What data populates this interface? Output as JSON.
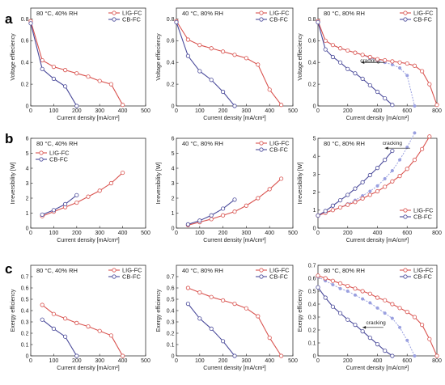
{
  "colors": {
    "lig": "#d9534f",
    "cb": "#4a4a9a",
    "frame": "#333333",
    "cracking": "#9aa0e0"
  },
  "chart_data": [
    {
      "type": "line",
      "row": "a",
      "condition": "80 °C, 40% RH",
      "xlabel": "Current density [mA/cm²]",
      "ylabel": "Voltage effieciency",
      "xlim": [
        0,
        500
      ],
      "ylim": [
        0,
        0.9
      ],
      "xticks": [
        0,
        100,
        200,
        300,
        400,
        500
      ],
      "yticks": [
        0.0,
        0.2,
        0.4,
        0.6,
        0.8
      ],
      "legend_position": "top-right",
      "cracking": null,
      "series": [
        {
          "name": "LIG-FC",
          "color": "lig",
          "x": [
            0,
            50,
            100,
            150,
            200,
            250,
            300,
            350,
            400
          ],
          "y": [
            0.78,
            0.42,
            0.36,
            0.33,
            0.3,
            0.27,
            0.23,
            0.2,
            0.01
          ]
        },
        {
          "name": "CB-FC",
          "color": "cb",
          "x": [
            0,
            50,
            100,
            150,
            200
          ],
          "y": [
            0.76,
            0.34,
            0.25,
            0.18,
            0.0
          ]
        }
      ]
    },
    {
      "type": "line",
      "row": "a",
      "condition": "40 °C, 80% RH",
      "xlabel": "Current density [mA/cm²]",
      "ylabel": "Voltage effieciency",
      "xlim": [
        0,
        500
      ],
      "ylim": [
        0,
        0.9
      ],
      "xticks": [
        0,
        100,
        200,
        300,
        400,
        500
      ],
      "yticks": [
        0.0,
        0.2,
        0.4,
        0.6,
        0.8
      ],
      "legend_position": "top-right",
      "cracking": null,
      "series": [
        {
          "name": "LIG-FC",
          "color": "lig",
          "x": [
            0,
            50,
            100,
            150,
            200,
            250,
            300,
            350,
            400,
            450
          ],
          "y": [
            0.78,
            0.61,
            0.56,
            0.53,
            0.5,
            0.47,
            0.44,
            0.38,
            0.15,
            0.01
          ]
        },
        {
          "name": "CB-FC",
          "color": "cb",
          "x": [
            0,
            50,
            100,
            150,
            200,
            250
          ],
          "y": [
            0.77,
            0.46,
            0.32,
            0.24,
            0.13,
            0.0
          ]
        }
      ]
    },
    {
      "type": "line",
      "row": "a",
      "condition": "80 °C, 80% RH",
      "xlabel": "Current density [mA/cm²]",
      "ylabel": "Voltage effieciency",
      "xlim": [
        0,
        800
      ],
      "ylim": [
        0,
        0.9
      ],
      "xticks": [
        0,
        200,
        400,
        600,
        800
      ],
      "yticks": [
        0.0,
        0.2,
        0.4,
        0.6,
        0.8
      ],
      "legend_position": "top-right",
      "cracking": {
        "label": "cracking",
        "label_x": 350,
        "label_y": 0.4,
        "arrow": [
          [
            450,
            0.4
          ],
          [
            290,
            0.4
          ]
        ],
        "series": {
          "x": [
            0,
            50,
            100,
            150,
            200,
            250,
            300,
            350,
            400,
            450,
            500,
            550,
            600,
            650
          ],
          "y": [
            0.78,
            0.6,
            0.56,
            0.53,
            0.51,
            0.49,
            0.47,
            0.44,
            0.42,
            0.4,
            0.38,
            0.35,
            0.28,
            0.0
          ]
        }
      },
      "series": [
        {
          "name": "LIG-FC",
          "color": "lig",
          "x": [
            0,
            50,
            100,
            150,
            200,
            250,
            300,
            350,
            400,
            450,
            500,
            550,
            600,
            650,
            700,
            750,
            800
          ],
          "y": [
            0.78,
            0.6,
            0.56,
            0.53,
            0.51,
            0.49,
            0.47,
            0.45,
            0.43,
            0.42,
            0.41,
            0.4,
            0.39,
            0.37,
            0.32,
            0.2,
            0.01
          ]
        },
        {
          "name": "CB-FC",
          "color": "cb",
          "x": [
            0,
            50,
            100,
            150,
            200,
            250,
            300,
            350,
            400,
            450,
            500
          ],
          "y": [
            0.77,
            0.52,
            0.45,
            0.4,
            0.34,
            0.3,
            0.25,
            0.19,
            0.13,
            0.07,
            0.01
          ]
        }
      ]
    },
    {
      "type": "line",
      "row": "b",
      "condition": "80 °C, 40% RH",
      "xlabel": "Current density [mA/cm²]",
      "ylabel": "Irreversibility [W]",
      "xlim": [
        0,
        500
      ],
      "ylim": [
        0,
        6
      ],
      "xticks": [
        0,
        100,
        200,
        300,
        400,
        500
      ],
      "yticks": [
        0,
        1,
        2,
        3,
        4,
        5,
        6
      ],
      "legend_position": "top-left",
      "cracking": null,
      "series": [
        {
          "name": "LIG-FC",
          "color": "lig",
          "x": [
            50,
            100,
            150,
            200,
            250,
            300,
            350,
            400
          ],
          "y": [
            0.8,
            1.1,
            1.4,
            1.7,
            2.1,
            2.5,
            3.0,
            3.7
          ]
        },
        {
          "name": "CB-FC",
          "color": "cb",
          "x": [
            50,
            100,
            150,
            200
          ],
          "y": [
            0.9,
            1.2,
            1.6,
            2.2
          ]
        }
      ]
    },
    {
      "type": "line",
      "row": "b",
      "condition": "40 °C, 80% RH",
      "xlabel": "Current density [mA/cm²]",
      "ylabel": "Irreversibility [W]",
      "xlim": [
        0,
        500
      ],
      "ylim": [
        0,
        6
      ],
      "xticks": [
        0,
        100,
        200,
        300,
        400,
        500
      ],
      "yticks": [
        0,
        1,
        2,
        3,
        4,
        5,
        6
      ],
      "legend_position": "top-right",
      "cracking": null,
      "series": [
        {
          "name": "LIG-FC",
          "color": "lig",
          "x": [
            50,
            100,
            150,
            200,
            250,
            300,
            350,
            400,
            450
          ],
          "y": [
            0.2,
            0.4,
            0.6,
            0.85,
            1.1,
            1.5,
            2.0,
            2.6,
            3.3
          ]
        },
        {
          "name": "CB-FC",
          "color": "cb",
          "x": [
            50,
            100,
            150,
            200,
            250
          ],
          "y": [
            0.25,
            0.5,
            0.85,
            1.3,
            1.9
          ]
        }
      ]
    },
    {
      "type": "line",
      "row": "b",
      "condition": "80 °C, 80% RH",
      "xlabel": "Current density [mA/cm²]",
      "ylabel": "Irreversibility [W]",
      "xlim": [
        0,
        800
      ],
      "ylim": [
        0,
        5
      ],
      "xticks": [
        0,
        200,
        400,
        600,
        800
      ],
      "yticks": [
        0,
        1,
        2,
        3,
        4,
        5
      ],
      "legend_position": "bottom-right",
      "cracking": {
        "label": "cracking",
        "label_x": 500,
        "label_y": 4.65,
        "arrow": [
          [
            620,
            4.45
          ],
          [
            450,
            4.45
          ]
        ],
        "series": {
          "x": [
            0,
            50,
            100,
            150,
            200,
            250,
            300,
            350,
            400,
            450,
            500,
            550,
            600,
            650
          ],
          "y": [
            0.7,
            0.85,
            1.0,
            1.15,
            1.35,
            1.55,
            1.8,
            2.05,
            2.35,
            2.75,
            3.2,
            3.8,
            4.5,
            5.3
          ]
        }
      },
      "series": [
        {
          "name": "LIG-FC",
          "color": "lig",
          "x": [
            0,
            50,
            100,
            150,
            200,
            250,
            300,
            350,
            400,
            450,
            500,
            550,
            600,
            650,
            700,
            750
          ],
          "y": [
            0.7,
            0.85,
            1.0,
            1.15,
            1.3,
            1.45,
            1.65,
            1.85,
            2.05,
            2.3,
            2.6,
            2.9,
            3.3,
            3.8,
            4.4,
            5.1
          ]
        },
        {
          "name": "CB-FC",
          "color": "cb",
          "x": [
            0,
            50,
            100,
            150,
            200,
            250,
            300,
            350,
            400,
            450,
            500
          ],
          "y": [
            0.7,
            0.95,
            1.25,
            1.55,
            1.85,
            2.2,
            2.55,
            2.95,
            3.35,
            3.8,
            4.3
          ]
        }
      ]
    },
    {
      "type": "line",
      "row": "c",
      "condition": "80 °C, 40% RH",
      "xlabel": "Current density [mA/cm²]",
      "ylabel": "Exergy efficiency",
      "xlim": [
        0,
        500
      ],
      "ylim": [
        0,
        0.8
      ],
      "xticks": [
        0,
        100,
        200,
        300,
        400,
        500
      ],
      "yticks": [
        0.0,
        0.1,
        0.2,
        0.3,
        0.4,
        0.5,
        0.6,
        0.7
      ],
      "legend_position": "top-right",
      "cracking": null,
      "series": [
        {
          "name": "LIG-FC",
          "color": "lig",
          "x": [
            50,
            100,
            150,
            200,
            250,
            300,
            350,
            400
          ],
          "y": [
            0.45,
            0.37,
            0.33,
            0.29,
            0.26,
            0.22,
            0.18,
            0.0
          ]
        },
        {
          "name": "CB-FC",
          "color": "cb",
          "x": [
            50,
            100,
            150,
            200
          ],
          "y": [
            0.32,
            0.24,
            0.17,
            0.0
          ]
        }
      ]
    },
    {
      "type": "line",
      "row": "c",
      "condition": "40 °C, 80% RH",
      "xlabel": "Current density [mA/cm²]",
      "ylabel": "Exergy efficiency",
      "xlim": [
        0,
        500
      ],
      "ylim": [
        0,
        0.8
      ],
      "xticks": [
        0,
        100,
        200,
        300,
        400,
        500
      ],
      "yticks": [
        0.0,
        0.1,
        0.2,
        0.3,
        0.4,
        0.5,
        0.6,
        0.7
      ],
      "legend_position": "top-right",
      "cracking": null,
      "series": [
        {
          "name": "LIG-FC",
          "color": "lig",
          "x": [
            50,
            100,
            150,
            200,
            250,
            300,
            350,
            400,
            450
          ],
          "y": [
            0.6,
            0.56,
            0.52,
            0.49,
            0.46,
            0.42,
            0.35,
            0.16,
            0.0
          ]
        },
        {
          "name": "CB-FC",
          "color": "cb",
          "x": [
            50,
            100,
            150,
            200,
            250
          ],
          "y": [
            0.46,
            0.33,
            0.24,
            0.13,
            0.0
          ]
        }
      ]
    },
    {
      "type": "line",
      "row": "c",
      "condition": "80 °C, 80% RH",
      "xlabel": "Current density [mA/cm²]",
      "ylabel": "Exergy efficiency",
      "xlim": [
        0,
        800
      ],
      "ylim": [
        0,
        0.7
      ],
      "xticks": [
        0,
        200,
        400,
        600,
        800
      ],
      "yticks": [
        0.0,
        0.1,
        0.2,
        0.3,
        0.4,
        0.5,
        0.6,
        0.7
      ],
      "legend_position": "top-right",
      "cracking": {
        "label": "cracking",
        "label_x": 390,
        "label_y": 0.245,
        "arrow": [
          [
            440,
            0.22
          ],
          [
            300,
            0.22
          ]
        ],
        "series": {
          "x": [
            0,
            50,
            100,
            150,
            200,
            250,
            300,
            350,
            400,
            450,
            500,
            550,
            600,
            650
          ],
          "y": [
            0.61,
            0.58,
            0.55,
            0.52,
            0.5,
            0.47,
            0.44,
            0.41,
            0.37,
            0.33,
            0.29,
            0.22,
            0.12,
            0.0
          ]
        }
      },
      "series": [
        {
          "name": "LIG-FC",
          "color": "lig",
          "x": [
            0,
            50,
            100,
            150,
            200,
            250,
            300,
            350,
            400,
            450,
            500,
            550,
            600,
            650,
            700,
            750,
            800
          ],
          "y": [
            0.62,
            0.6,
            0.58,
            0.56,
            0.54,
            0.52,
            0.5,
            0.48,
            0.45,
            0.43,
            0.4,
            0.37,
            0.34,
            0.3,
            0.24,
            0.13,
            0.0
          ]
        },
        {
          "name": "CB-FC",
          "color": "cb",
          "x": [
            0,
            50,
            100,
            150,
            200,
            250,
            300,
            350,
            400,
            450,
            500
          ],
          "y": [
            0.53,
            0.45,
            0.38,
            0.33,
            0.28,
            0.24,
            0.19,
            0.14,
            0.09,
            0.04,
            0.0
          ]
        }
      ]
    }
  ],
  "rows": [
    {
      "label": "a"
    },
    {
      "label": "b"
    },
    {
      "label": "c"
    }
  ]
}
